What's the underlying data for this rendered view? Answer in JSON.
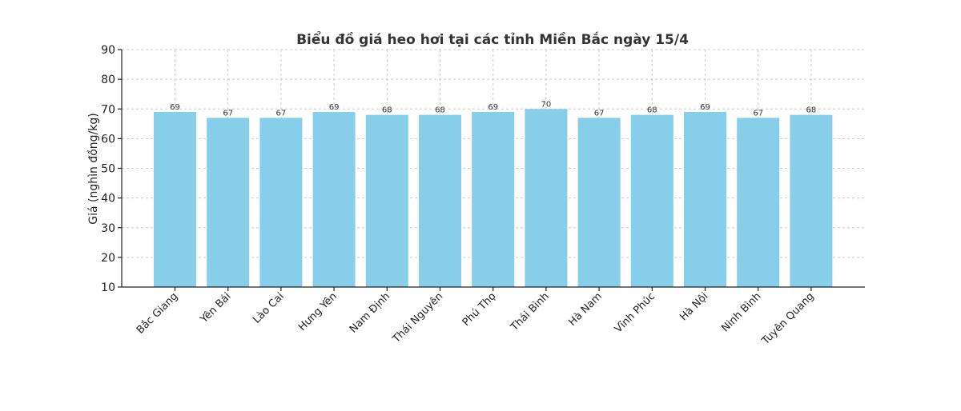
{
  "chart_data": {
    "type": "bar",
    "title": "Biểu đồ giá heo hơi tại các tỉnh Miền Bắc ngày 15/4",
    "xlabel": "",
    "ylabel": "Giá (nghìn đồng/kg)",
    "ylim": [
      10,
      90
    ],
    "yticks": [
      10,
      20,
      30,
      40,
      50,
      60,
      70,
      80,
      90
    ],
    "grid": true,
    "bar_color": "#87ceeb",
    "categories": [
      "Bắc Giang",
      "Yên Bái",
      "Lào Cai",
      "Hưng Yên",
      "Nam Định",
      "Thái Nguyên",
      "Phú Thọ",
      "Thái Bình",
      "Hà Nam",
      "Vĩnh Phúc",
      "Hà Nội",
      "Ninh Bình",
      "Tuyên Quang"
    ],
    "values": [
      69,
      67,
      67,
      69,
      68,
      68,
      69,
      70,
      67,
      68,
      69,
      67,
      68
    ]
  }
}
